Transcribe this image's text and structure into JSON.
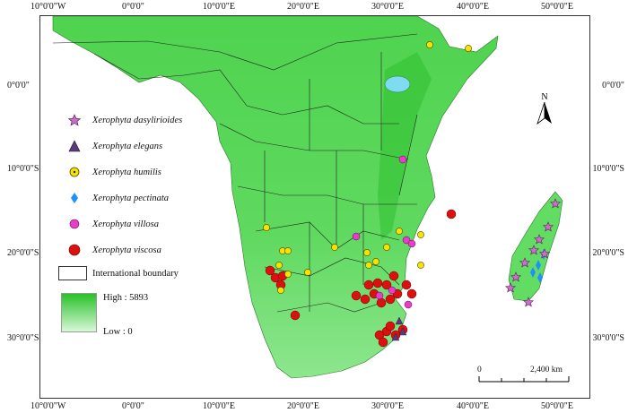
{
  "graticule": {
    "top": [
      "10°0'0\"W",
      "0°0'0\"",
      "10°0'0\"E",
      "20°0'0\"E",
      "30°0'0\"E",
      "40°0'0\"E",
      "50°0'0\"E"
    ],
    "bottom": [
      "10°0'0\"W",
      "0°0'0\"",
      "10°0'0\"E",
      "20°0'0\"E",
      "30°0'0\"E",
      "40°0'0\"E",
      "50°0'0\"E"
    ],
    "left": [
      "0°0'0\"",
      "10°0'0\"S",
      "20°0'0\"S",
      "30°0'0\"S"
    ],
    "right": [
      "0°0'0\"",
      "10°0'0\"S",
      "20°0'0\"S",
      "30°0'0\"S"
    ]
  },
  "legend": {
    "species": [
      {
        "name": "Xerophyta dasylirioides",
        "symbol": "star",
        "color": "#c86fc8"
      },
      {
        "name": "Xerophyta elegans",
        "symbol": "triangle",
        "color": "#5a3a7a"
      },
      {
        "name": "Xerophyta humilis",
        "symbol": "circle-dot",
        "color": "#f5e300"
      },
      {
        "name": "Xerophyta pectinata",
        "symbol": "diamond",
        "color": "#1e90ff"
      },
      {
        "name": "Xerophyta villosa",
        "symbol": "circle",
        "color": "#e63ec8"
      },
      {
        "name": "Xerophyta viscosa",
        "symbol": "circle",
        "color": "#dd1010"
      }
    ],
    "boundary_label": "International boundary",
    "elevation_high": "High : 5893",
    "elevation_low": "Low : 0"
  },
  "north_label": "N",
  "scale": {
    "start": "0",
    "end": "2,400 km"
  },
  "colors": {
    "land_high": "#28c228",
    "land_low": "#d8f7d8",
    "land_mid": "#63dc63",
    "ocean": "#ffffff"
  }
}
